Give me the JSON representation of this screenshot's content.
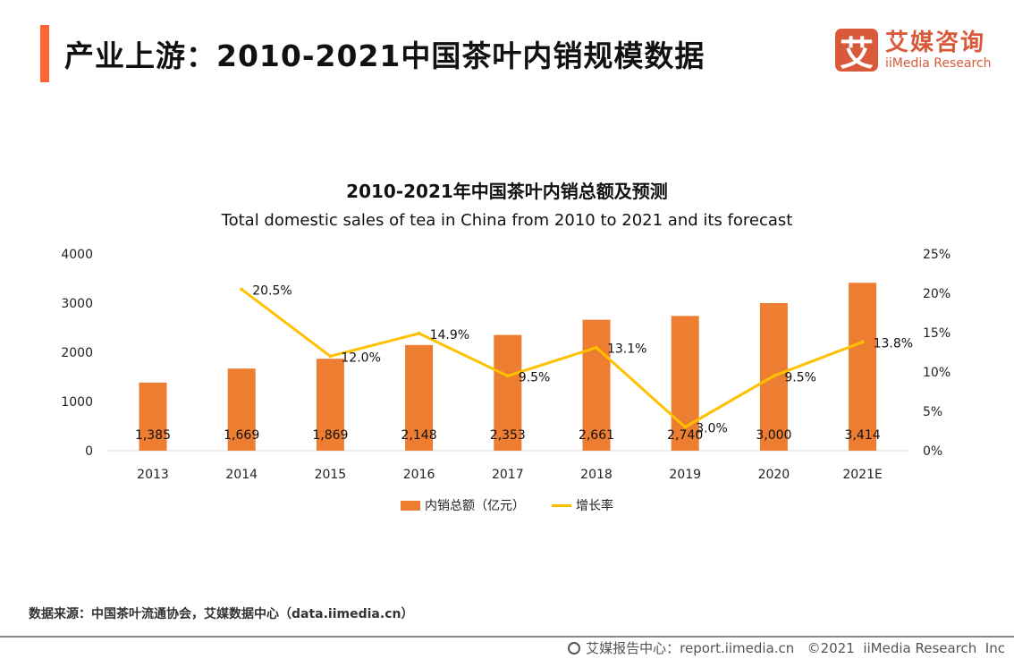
{
  "header": {
    "title": "产业上游：2010-2021中国茶叶内销规模数据",
    "accent_color": "#FF6633"
  },
  "logo": {
    "mark": "艾",
    "cn": "艾媒咨询",
    "en": "iiMedia Research",
    "color": "#D85A3A"
  },
  "chart_data": {
    "type": "bar+line",
    "title": "2010-2021年中国茶叶内销总额及预测",
    "subtitle": "Total domestic sales of tea in China from 2010 to 2021 and its forecast",
    "categories": [
      "2013",
      "2014",
      "2015",
      "2016",
      "2017",
      "2018",
      "2019",
      "2020",
      "2021E"
    ],
    "series": [
      {
        "name": "内销总额（亿元）",
        "type": "bar",
        "axis": "left",
        "color": "#ED7D31",
        "values": [
          1385,
          1669,
          1869,
          2148,
          2353,
          2661,
          2740,
          3000,
          3414
        ],
        "labels": [
          "1,385",
          "1,669",
          "1,869",
          "2,148",
          "2,353",
          "2,661",
          "2,740",
          "3,000",
          "3,414"
        ]
      },
      {
        "name": "增长率",
        "type": "line",
        "axis": "right",
        "color": "#FFC000",
        "values": [
          null,
          20.5,
          12.0,
          14.9,
          9.5,
          13.1,
          3.0,
          9.5,
          13.8
        ],
        "labels": [
          "",
          "20.5%",
          "12.0%",
          "14.9%",
          "9.5%",
          "13.1%",
          "3.0%",
          "9.5%",
          "13.8%"
        ]
      }
    ],
    "y_left": {
      "range": [
        0,
        4000
      ],
      "ticks": [
        "0",
        "1000",
        "2000",
        "3000",
        "4000"
      ]
    },
    "y_right": {
      "range": [
        0,
        25
      ],
      "ticks": [
        "0%",
        "5%",
        "10%",
        "15%",
        "20%",
        "25%"
      ]
    },
    "grid": false,
    "legend": "bottom"
  },
  "source": "数据来源：中国茶叶流通协会，艾媒数据中心（data.iimedia.cn）",
  "footer": {
    "text": "艾媒报告中心：report.iimedia.cn   ©2021  iiMedia Research  Inc",
    "icon": "globe-icon"
  }
}
